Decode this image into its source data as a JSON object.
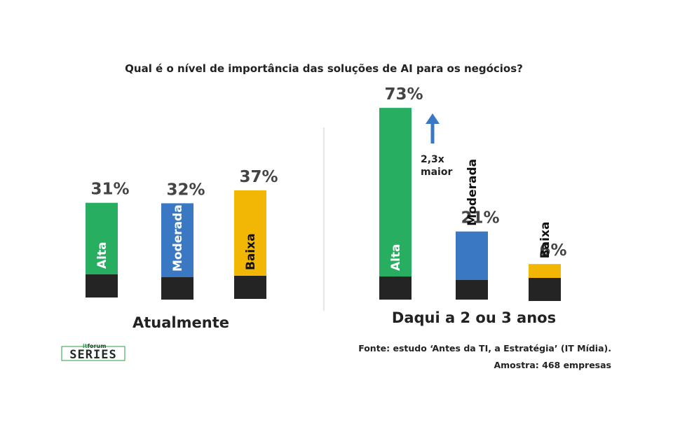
{
  "colors": {
    "alta": "#27ae60",
    "moderada": "#3a78c3",
    "baixa": "#f2b705",
    "base": "#242424",
    "arrow": "#3a78c3",
    "divider": "#cccccc",
    "logo_green": "#2e9e4a"
  },
  "chart_data": [
    {
      "type": "bar",
      "title": "Qual é o nível de importância das soluções de AI para os negócios?",
      "group_label": "Atualmente",
      "categories": [
        "Alta",
        "Moderada",
        "Baixa"
      ],
      "values": [
        31,
        32,
        37
      ],
      "value_labels": [
        "31%",
        "32%",
        "37%"
      ],
      "unit": "%",
      "ylim": [
        0,
        73
      ],
      "grid": false,
      "legend": "none"
    },
    {
      "type": "bar",
      "group_label": "Daqui a 2 ou 3 anos",
      "categories": [
        "Alta",
        "Moderada",
        "Baixa"
      ],
      "values": [
        73,
        21,
        6
      ],
      "value_labels": [
        "73%",
        "21%",
        "6%"
      ],
      "unit": "%",
      "ylim": [
        0,
        73
      ],
      "grid": false,
      "legend": "none",
      "annotation": {
        "line1": "2,3x",
        "line2": "maior",
        "icon": "up-arrow-icon"
      }
    }
  ],
  "footer": {
    "source": "Fonte: estudo ‘Antes da TI, a Estratégia’ (IT Mídia).",
    "sample": "Amostra: 468 empresas"
  },
  "logo": {
    "top_it": "it",
    "top_forum": "forum",
    "main": "SERIES"
  }
}
